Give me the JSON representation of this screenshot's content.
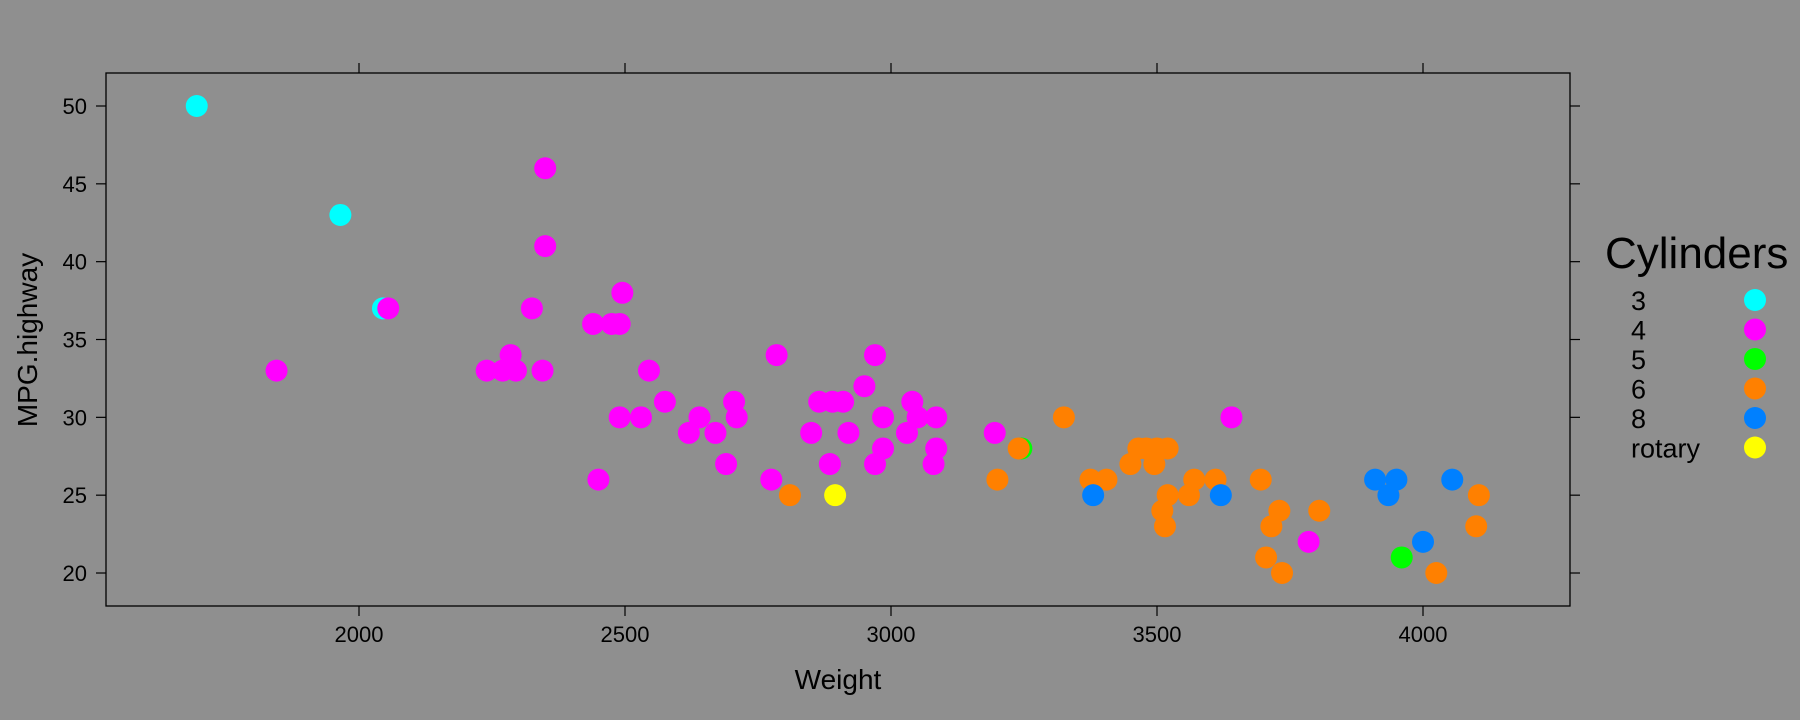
{
  "chart_data": {
    "type": "scatter",
    "title": "",
    "xlabel": "Weight",
    "ylabel": "MPG.highway",
    "xlim": [
      1520,
      4280
    ],
    "ylim": [
      18,
      52.5
    ],
    "x_ticks": [
      2000,
      2500,
      3000,
      3500,
      4000
    ],
    "y_ticks": [
      20,
      25,
      30,
      35,
      40,
      45,
      50
    ],
    "grid": false,
    "background": "#8f8f8f",
    "legend": {
      "title": "Cylinders",
      "position": "right",
      "entries": [
        {
          "label": "3",
          "color": "#00ffff"
        },
        {
          "label": "4",
          "color": "#ff00ff"
        },
        {
          "label": "5",
          "color": "#00ff00"
        },
        {
          "label": "6",
          "color": "#ff8000"
        },
        {
          "label": "8",
          "color": "#0080ff"
        },
        {
          "label": "rotary",
          "color": "#ffff00"
        }
      ]
    },
    "series": [
      {
        "name": "3",
        "color": "#00ffff",
        "points": [
          [
            1695,
            50
          ],
          [
            1965,
            43
          ],
          [
            2045,
            37
          ]
        ]
      },
      {
        "name": "4",
        "color": "#ff00ff",
        "points": [
          [
            1845,
            33
          ],
          [
            2055,
            37
          ],
          [
            2240,
            33
          ],
          [
            2270,
            33
          ],
          [
            2285,
            34
          ],
          [
            2295,
            33
          ],
          [
            2325,
            37
          ],
          [
            2345,
            33
          ],
          [
            2350,
            46
          ],
          [
            2350,
            41
          ],
          [
            2440,
            36
          ],
          [
            2450,
            26
          ],
          [
            2475,
            36
          ],
          [
            2490,
            30
          ],
          [
            2490,
            36
          ],
          [
            2495,
            38
          ],
          [
            2530,
            30
          ],
          [
            2545,
            33
          ],
          [
            2575,
            31
          ],
          [
            2620,
            29
          ],
          [
            2640,
            30
          ],
          [
            2670,
            29
          ],
          [
            2690,
            27
          ],
          [
            2705,
            31
          ],
          [
            2710,
            30
          ],
          [
            2775,
            26
          ],
          [
            2785,
            34
          ],
          [
            2850,
            29
          ],
          [
            2865,
            31
          ],
          [
            2885,
            27
          ],
          [
            2890,
            31
          ],
          [
            2910,
            31
          ],
          [
            2920,
            29
          ],
          [
            2950,
            32
          ],
          [
            2970,
            27
          ],
          [
            2970,
            34
          ],
          [
            2985,
            28
          ],
          [
            2985,
            30
          ],
          [
            3030,
            29
          ],
          [
            3040,
            31
          ],
          [
            3050,
            30
          ],
          [
            3080,
            27
          ],
          [
            3085,
            28
          ],
          [
            3085,
            30
          ],
          [
            3195,
            29
          ],
          [
            3640,
            30
          ],
          [
            3785,
            22
          ]
        ]
      },
      {
        "name": "5",
        "color": "#00ff00",
        "points": [
          [
            3245,
            28
          ],
          [
            3960,
            21
          ]
        ]
      },
      {
        "name": "6",
        "color": "#ff8000",
        "points": [
          [
            2810,
            25
          ],
          [
            3200,
            26
          ],
          [
            3240,
            28
          ],
          [
            3325,
            30
          ],
          [
            3375,
            26
          ],
          [
            3405,
            26
          ],
          [
            3450,
            27
          ],
          [
            3465,
            28
          ],
          [
            3480,
            28
          ],
          [
            3495,
            27
          ],
          [
            3500,
            28
          ],
          [
            3510,
            24
          ],
          [
            3515,
            23
          ],
          [
            3520,
            25
          ],
          [
            3520,
            28
          ],
          [
            3560,
            25
          ],
          [
            3570,
            26
          ],
          [
            3610,
            26
          ],
          [
            3695,
            26
          ],
          [
            3705,
            21
          ],
          [
            3715,
            23
          ],
          [
            3730,
            24
          ],
          [
            3735,
            20
          ],
          [
            3805,
            24
          ],
          [
            4025,
            20
          ],
          [
            4100,
            23
          ],
          [
            4105,
            25
          ]
        ]
      },
      {
        "name": "8",
        "color": "#0080ff",
        "points": [
          [
            3380,
            25
          ],
          [
            3620,
            25
          ],
          [
            3910,
            26
          ],
          [
            3935,
            25
          ],
          [
            3950,
            26
          ],
          [
            4000,
            22
          ],
          [
            4055,
            26
          ]
        ]
      },
      {
        "name": "rotary",
        "color": "#ffff00",
        "points": [
          [
            2895,
            25
          ]
        ]
      }
    ]
  }
}
